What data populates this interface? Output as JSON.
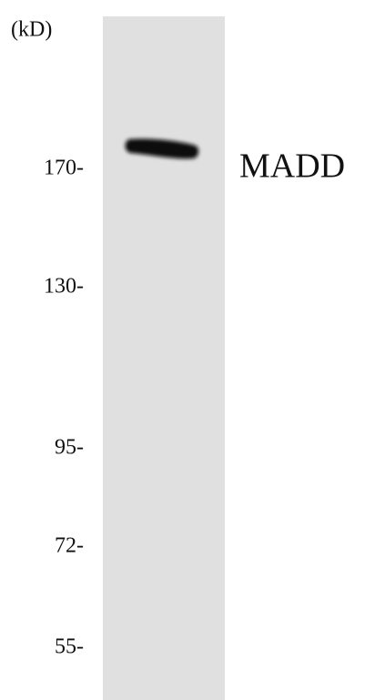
{
  "unit": "(kD)",
  "markers": [
    {
      "label": "170-"
    },
    {
      "label": "130-"
    },
    {
      "label": "95-"
    },
    {
      "label": "72-"
    },
    {
      "label": "55-"
    }
  ],
  "band": {
    "label": "MADD"
  }
}
